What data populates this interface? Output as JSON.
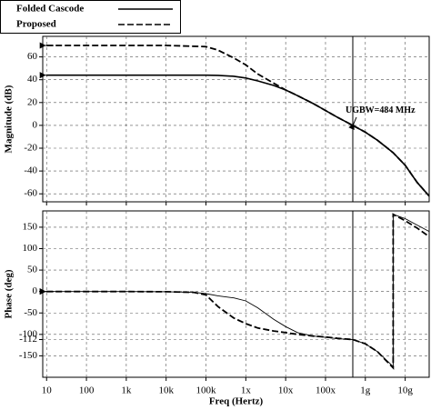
{
  "chart_data": [
    {
      "type": "line",
      "ylabel": "Magnitude (dB)",
      "log_x": true,
      "grid": true,
      "x": [
        10,
        100,
        1000,
        10000,
        100000,
        200000,
        500000,
        1000000,
        2000000,
        5000000,
        10000000,
        20000000,
        50000000,
        100000000,
        200000000,
        484000000,
        1000000000,
        2000000000,
        5000000000,
        10000000000,
        20000000000,
        40000000000
      ],
      "series": [
        {
          "name": "Folded Cascode",
          "color": "#000000",
          "dash": false,
          "values": [
            44,
            44,
            44,
            44,
            44,
            43.8,
            43,
            41.5,
            39,
            35,
            31,
            26,
            19,
            13,
            7,
            0,
            -6,
            -13,
            -24,
            -35,
            -50,
            -62
          ]
        },
        {
          "name": "Proposed",
          "color": "#000000",
          "dash": true,
          "values": [
            70,
            70,
            70,
            70,
            69,
            66,
            59,
            53,
            45,
            37,
            31,
            26,
            19,
            13,
            7,
            0,
            -6,
            -13,
            -24,
            -35,
            -50,
            -62
          ]
        }
      ],
      "xlim": [
        8,
        40000000000
      ],
      "xticks": [
        10,
        100,
        {
          "value": 1000,
          "label": "1k"
        },
        {
          "value": 10000,
          "label": "10k"
        },
        {
          "value": 100000,
          "label": "100k"
        },
        {
          "value": 1000000,
          "label": "1x"
        },
        {
          "value": 10000000,
          "label": "10x"
        },
        {
          "value": 100000000,
          "label": "100x"
        },
        {
          "value": 1000000000,
          "label": "1g"
        },
        {
          "value": 10000000000,
          "label": "10g"
        }
      ],
      "ylim": [
        -67,
        78
      ],
      "yticks": [
        60,
        40,
        20,
        0,
        -20,
        -40,
        -60
      ],
      "vline": 484000000,
      "annotation": "UGBW=484 MHz"
    },
    {
      "type": "line",
      "ylabel": "Phase (deg)",
      "xlabel": "Freq (Hertz)",
      "log_x": true,
      "grid": true,
      "x": [
        10,
        100,
        1000,
        10000,
        50000,
        100000,
        200000,
        500000,
        1000000,
        2000000,
        5000000,
        10000000,
        20000000,
        50000000,
        100000000,
        200000000,
        484000000,
        1000000000,
        2000000000,
        5000000000,
        5000000000,
        10000000000,
        20000000000,
        40000000000
      ],
      "series": [
        {
          "name": "Folded Cascode",
          "color": "#000000",
          "dash": false,
          "values": [
            0,
            0,
            0,
            -0.5,
            -2,
            -5,
            -10,
            -15,
            -22,
            -38,
            -65,
            -82,
            -96,
            -104,
            -107,
            -110,
            -112,
            -122,
            -140,
            -175,
            180,
            170,
            155,
            140
          ]
        },
        {
          "name": "Proposed",
          "color": "#000000",
          "dash": true,
          "values": [
            0,
            0,
            0,
            -0.5,
            -2,
            -8,
            -35,
            -62,
            -75,
            -85,
            -92,
            -96,
            -100,
            -104,
            -106,
            -109,
            -112,
            -122,
            -140,
            -178,
            180,
            165,
            148,
            128
          ]
        }
      ],
      "xlim": [
        8,
        40000000000
      ],
      "xticks": [
        10,
        100,
        {
          "value": 1000,
          "label": "1k"
        },
        {
          "value": 10000,
          "label": "10k"
        },
        {
          "value": 100000,
          "label": "100k"
        },
        {
          "value": 1000000,
          "label": "1x"
        },
        {
          "value": 10000000,
          "label": "10x"
        },
        {
          "value": 100000000,
          "label": "100x"
        },
        {
          "value": 1000000000,
          "label": "1g"
        },
        {
          "value": 10000000000,
          "label": "10g"
        }
      ],
      "ylim": [
        -200,
        188
      ],
      "yticks": [
        150,
        100,
        50,
        0,
        -50,
        -100,
        -112,
        -150
      ],
      "vline": 484000000
    }
  ]
}
